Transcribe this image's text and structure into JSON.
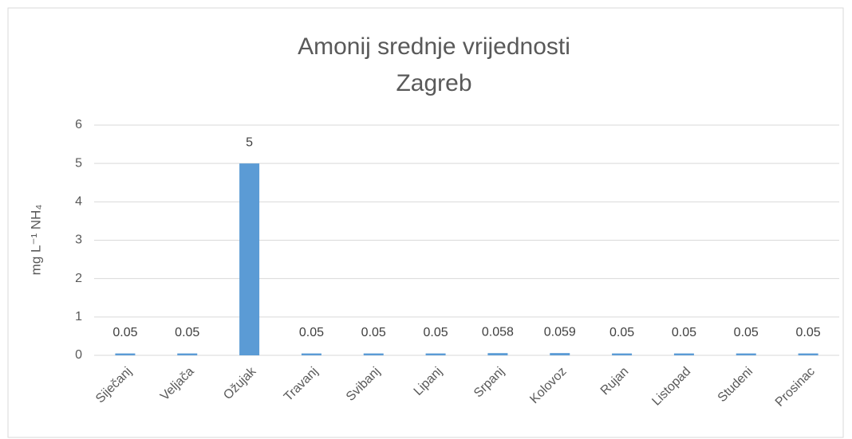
{
  "chart_data": {
    "type": "bar",
    "title": "Amonij srednje vrijednosti",
    "subtitle": "Zagreb",
    "y_label": "mg L⁻¹ NH₄",
    "categories": [
      "Siječanj",
      "Veljača",
      "Ožujak",
      "Travanj",
      "Svibanj",
      "Lipanj",
      "Srpanj",
      "Kolovoz",
      "Rujan",
      "Listopad",
      "Studeni",
      "Prosinac"
    ],
    "values": [
      0.05,
      0.05,
      5,
      0.05,
      0.05,
      0.05,
      0.058,
      0.059,
      0.05,
      0.05,
      0.05,
      0.05
    ],
    "color": "#5b9bd5",
    "ylim": [
      0,
      6
    ],
    "yticks": [
      0,
      1,
      2,
      3,
      4,
      5,
      6
    ],
    "grid": true
  }
}
